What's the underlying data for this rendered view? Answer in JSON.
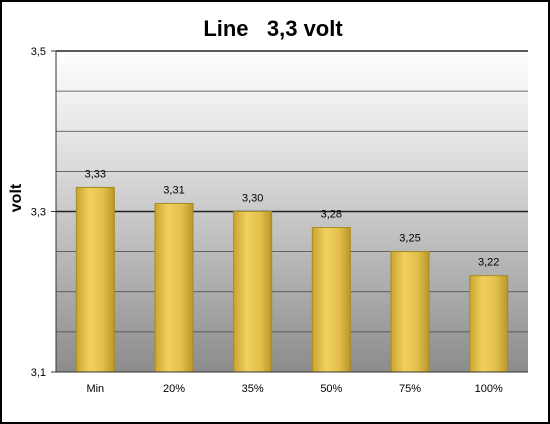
{
  "chart_data": {
    "type": "bar",
    "title": "Line   3,3 volt",
    "xlabel": "",
    "ylabel": "volt",
    "categories": [
      "Min",
      "20%",
      "35%",
      "50%",
      "75%",
      "100%"
    ],
    "values": [
      3.33,
      3.31,
      3.3,
      3.28,
      3.25,
      3.22
    ],
    "value_labels": [
      "3,33",
      "3,31",
      "3,30",
      "3,28",
      "3,25",
      "3,22"
    ],
    "ylim": [
      3.1,
      3.5
    ],
    "yticks": [
      3.1,
      3.3,
      3.5
    ],
    "ytick_labels": [
      "3,1",
      "3,3",
      "3,5"
    ],
    "grid_lines": [
      3.15,
      3.2,
      3.25,
      3.3,
      3.35,
      3.4,
      3.45,
      3.5
    ],
    "grid": true,
    "legend": "none",
    "bar_color": "#E3C04A",
    "bar_edge_color": "#A98A1E"
  }
}
